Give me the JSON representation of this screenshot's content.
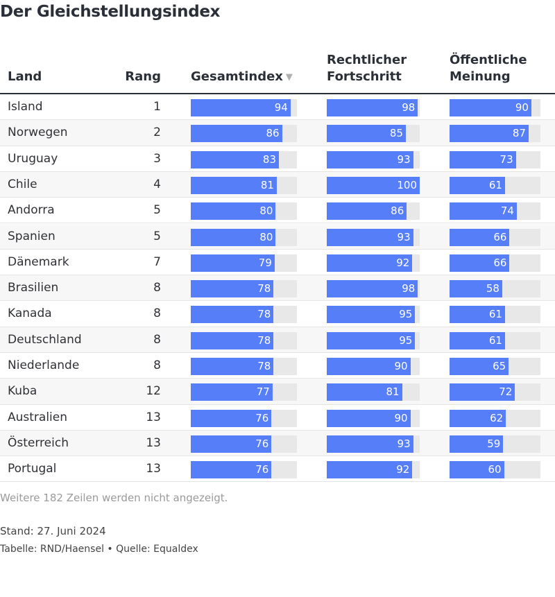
{
  "title": "Der Gleichstellungsindex",
  "columns": {
    "land": "Land",
    "rang": "Rang",
    "gesamt": "Gesamtindex",
    "sort_icon": "sort-descending-icon",
    "recht": "Rechtlicher\nFortschritt",
    "meinung": "Öffentliche\nMeinung"
  },
  "colors": {
    "bar": "#557ef8",
    "track": "#e8e8e8"
  },
  "chart_data": {
    "type": "table",
    "columns": [
      "Land",
      "Rang",
      "Gesamtindex",
      "Rechtlicher Fortschritt",
      "Öffentliche Meinung"
    ],
    "value_range": [
      0,
      100
    ],
    "rows": [
      {
        "land": "Island",
        "rang": "1",
        "gesamt": 94,
        "recht": 98,
        "meinung": 90
      },
      {
        "land": "Norwegen",
        "rang": "2",
        "gesamt": 86,
        "recht": 85,
        "meinung": 87
      },
      {
        "land": "Uruguay",
        "rang": "3",
        "gesamt": 83,
        "recht": 93,
        "meinung": 73
      },
      {
        "land": "Chile",
        "rang": "4",
        "gesamt": 81,
        "recht": 100,
        "meinung": 61
      },
      {
        "land": "Andorra",
        "rang": "5",
        "gesamt": 80,
        "recht": 86,
        "meinung": 74
      },
      {
        "land": "Spanien",
        "rang": "5",
        "gesamt": 80,
        "recht": 93,
        "meinung": 66
      },
      {
        "land": "Dänemark",
        "rang": "7",
        "gesamt": 79,
        "recht": 92,
        "meinung": 66
      },
      {
        "land": "Brasilien",
        "rang": "8",
        "gesamt": 78,
        "recht": 98,
        "meinung": 58
      },
      {
        "land": "Kanada",
        "rang": "8",
        "gesamt": 78,
        "recht": 95,
        "meinung": 61
      },
      {
        "land": "Deutschland",
        "rang": "8",
        "gesamt": 78,
        "recht": 95,
        "meinung": 61
      },
      {
        "land": "Niederlande",
        "rang": "8",
        "gesamt": 78,
        "recht": 90,
        "meinung": 65
      },
      {
        "land": "Kuba",
        "rang": "12",
        "gesamt": 77,
        "recht": 81,
        "meinung": 72
      },
      {
        "land": "Australien",
        "rang": "13",
        "gesamt": 76,
        "recht": 90,
        "meinung": 62
      },
      {
        "land": "Österreich",
        "rang": "13",
        "gesamt": 76,
        "recht": 93,
        "meinung": 59
      },
      {
        "land": "Portugal",
        "rang": "13",
        "gesamt": 76,
        "recht": 92,
        "meinung": 60
      }
    ]
  },
  "note": "Weitere 182 Zeilen werden nicht angezeigt.",
  "stand": "Stand: 27. Juni 2024",
  "credit": "Tabelle: RND/Haensel • Quelle: Equaldex"
}
